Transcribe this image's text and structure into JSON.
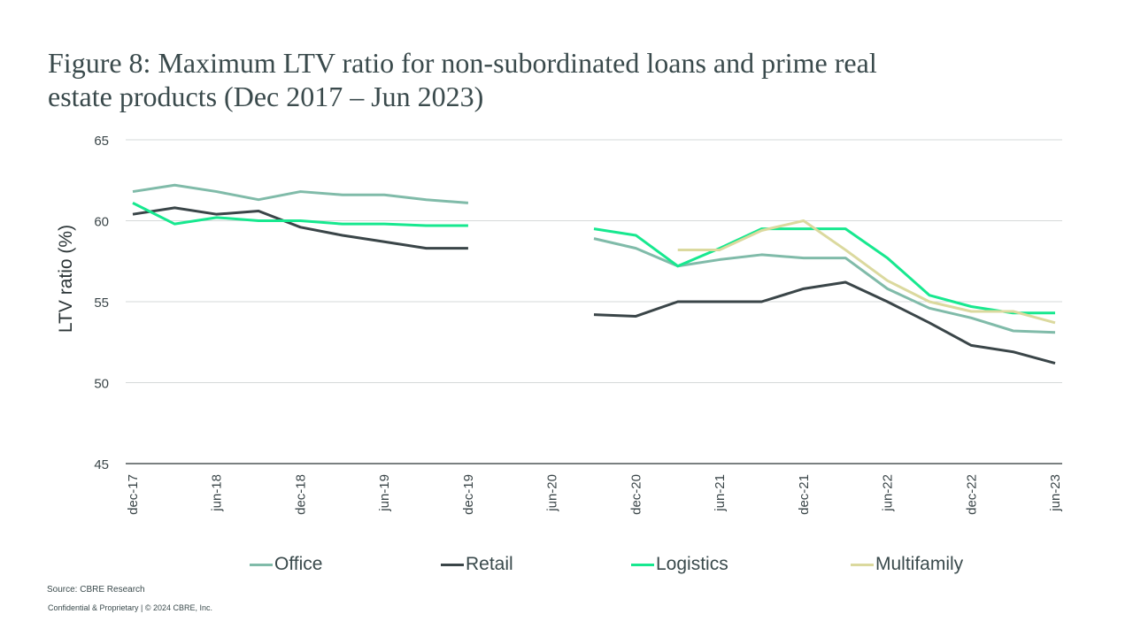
{
  "title_lines": [
    "Figure 8: Maximum LTV ratio for non-subordinated loans and prime real",
    "estate products (Dec 2017 – Jun 2023)"
  ],
  "footer": {
    "source": "Source: CBRE Research",
    "confidential": "Confidential & Proprietary | © 2024 CBRE, Inc."
  },
  "chart_data": {
    "type": "line",
    "title": "Figure 8: Maximum LTV ratio for non-subordinated loans and prime real estate products (Dec 2017 – Jun 2023)",
    "xlabel": "",
    "ylabel": "LTV ratio (%)",
    "ylim": [
      45,
      65
    ],
    "yticks": [
      45,
      50,
      55,
      60,
      65
    ],
    "grid": true,
    "legend_position": "bottom",
    "x": [
      "dec-17",
      "mar-18",
      "jun-18",
      "sep-18",
      "dec-18",
      "mar-19",
      "jun-19",
      "sep-19",
      "dec-19",
      "mar-20",
      "jun-20",
      "sep-20",
      "dec-20",
      "mar-21",
      "jun-21",
      "sep-21",
      "dec-21",
      "mar-22",
      "jun-22",
      "sep-22",
      "dec-22",
      "mar-23",
      "jun-23"
    ],
    "xtick_labels": [
      "dec-17",
      "jun-18",
      "dec-18",
      "jun-19",
      "dec-19",
      "jun-20",
      "dec-20",
      "jun-21",
      "dec-21",
      "jun-22",
      "dec-22",
      "jun-23"
    ],
    "series": [
      {
        "name": "Office",
        "color": "#80bba9",
        "values": [
          61.8,
          62.2,
          61.8,
          61.3,
          61.8,
          61.6,
          61.6,
          61.3,
          61.1,
          null,
          null,
          58.9,
          58.3,
          57.2,
          57.6,
          57.9,
          57.7,
          57.7,
          55.8,
          54.6,
          54.0,
          53.2,
          53.1
        ]
      },
      {
        "name": "Retail",
        "color": "#3a4548",
        "values": [
          60.4,
          60.8,
          60.4,
          60.6,
          59.6,
          59.1,
          58.7,
          58.3,
          58.3,
          null,
          null,
          54.2,
          54.1,
          55.0,
          55.0,
          55.0,
          55.8,
          56.2,
          55.0,
          53.7,
          52.3,
          51.9,
          51.2
        ]
      },
      {
        "name": "Logistics",
        "color": "#17e88f",
        "values": [
          61.1,
          59.8,
          60.2,
          60.0,
          60.0,
          59.8,
          59.8,
          59.7,
          59.7,
          null,
          null,
          59.5,
          59.1,
          57.2,
          58.3,
          59.5,
          59.5,
          59.5,
          57.7,
          55.4,
          54.7,
          54.3,
          54.3
        ]
      },
      {
        "name": "Multifamily",
        "color": "#dbd99e",
        "values": [
          null,
          null,
          null,
          null,
          null,
          null,
          null,
          null,
          null,
          null,
          null,
          null,
          null,
          58.2,
          58.2,
          59.4,
          60.0,
          58.2,
          56.3,
          55.0,
          54.4,
          54.4,
          53.7
        ]
      }
    ]
  }
}
